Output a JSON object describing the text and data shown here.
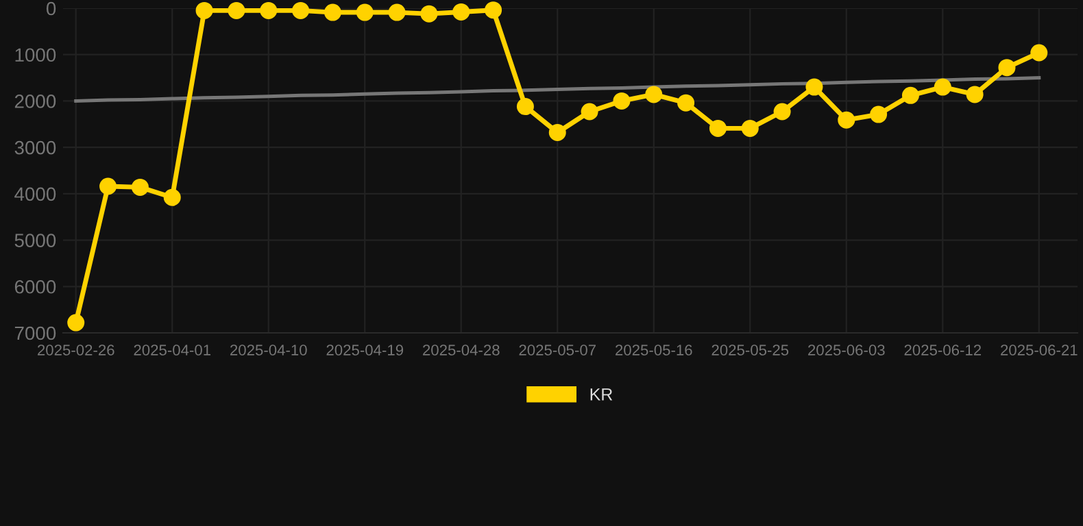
{
  "chart_data": {
    "type": "line",
    "categories": [
      "2025-02-26",
      null,
      null,
      "2025-04-01",
      null,
      null,
      "2025-04-10",
      null,
      null,
      "2025-04-19",
      null,
      null,
      "2025-04-28",
      null,
      null,
      "2025-05-07",
      null,
      null,
      "2025-05-16",
      null,
      null,
      "2025-05-25",
      null,
      null,
      "2025-06-03",
      null,
      null,
      "2025-06-12",
      null,
      null,
      "2025-06-21"
    ],
    "series": [
      {
        "name": "KR",
        "color": "#ffd200",
        "marker": "circle",
        "values": [
          6780,
          3840,
          3860,
          4080,
          50,
          50,
          50,
          50,
          90,
          90,
          90,
          120,
          80,
          40,
          2120,
          2680,
          2230,
          2000,
          1860,
          2040,
          2590,
          2590,
          2230,
          1700,
          2410,
          2290,
          1880,
          1700,
          1860,
          1280,
          960
        ]
      },
      {
        "type": "line",
        "color": "#777777",
        "marker": "none",
        "values": [
          2000,
          1980,
          1970,
          1950,
          1930,
          1920,
          1900,
          1880,
          1870,
          1850,
          1830,
          1820,
          1800,
          1780,
          1770,
          1750,
          1730,
          1720,
          1700,
          1680,
          1670,
          1650,
          1630,
          1620,
          1600,
          1580,
          1570,
          1550,
          1530,
          1520,
          1500
        ]
      }
    ],
    "ylim": [
      7000,
      0
    ],
    "yticks": [
      0,
      1000,
      2000,
      3000,
      4000,
      5000,
      6000,
      7000
    ],
    "grid": true,
    "legend": "bottom",
    "line_style": "solid"
  }
}
